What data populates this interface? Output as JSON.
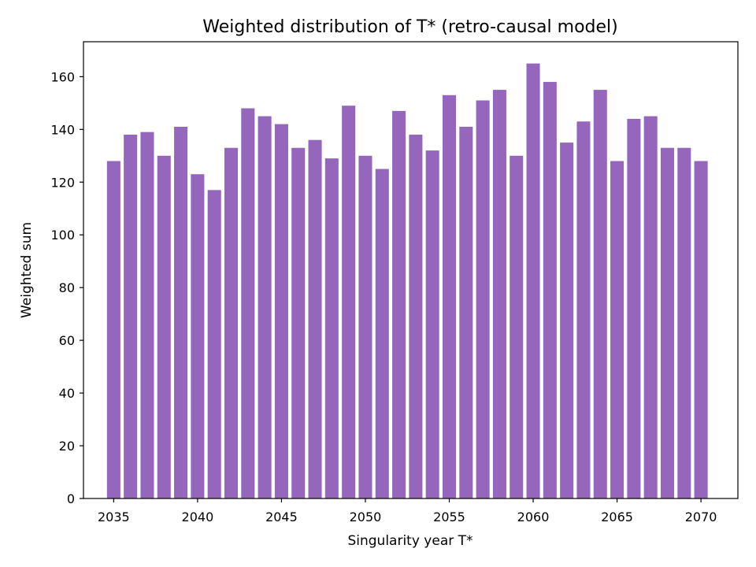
{
  "chart_data": {
    "type": "bar",
    "title": "Weighted distribution of T* (retro-causal model)",
    "xlabel": "Singularity year T*",
    "ylabel": "Weighted sum",
    "bar_color": "#9467bd",
    "grid": false,
    "legend": "none",
    "xlim": [
      2033.2,
      2072.2
    ],
    "ylim": [
      0,
      173.25
    ],
    "xticks": [
      2035,
      2040,
      2045,
      2050,
      2055,
      2060,
      2065,
      2070
    ],
    "yticks": [
      0,
      20,
      40,
      60,
      80,
      100,
      120,
      140,
      160
    ],
    "categories": [
      2035,
      2036,
      2037,
      2038,
      2039,
      2040,
      2041,
      2042,
      2043,
      2044,
      2045,
      2046,
      2047,
      2048,
      2049,
      2050,
      2051,
      2052,
      2053,
      2054,
      2055,
      2056,
      2057,
      2058,
      2059,
      2060,
      2061,
      2062,
      2063,
      2064,
      2065,
      2066,
      2067,
      2068,
      2069,
      2070
    ],
    "values": [
      128,
      138,
      139,
      130,
      141,
      123,
      117,
      133,
      148,
      145,
      142,
      133,
      136,
      129,
      149,
      130,
      125,
      147,
      138,
      132,
      153,
      141,
      151,
      155,
      130,
      165,
      158,
      135,
      143,
      155,
      128,
      144,
      145,
      133,
      133,
      128
    ]
  }
}
